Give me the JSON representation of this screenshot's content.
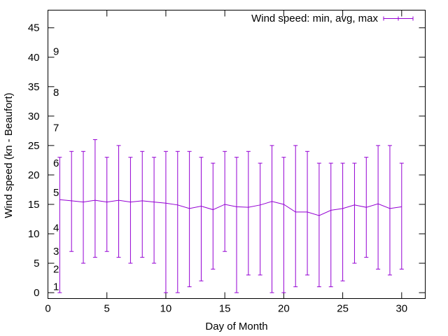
{
  "chart_data": {
    "type": "line",
    "title": "",
    "xlabel": "Day of Month",
    "ylabel": "Wind speed (kn - Beaufort)",
    "xlim": [
      0,
      32
    ],
    "ylim": [
      -1,
      48
    ],
    "x_ticks": [
      0,
      5,
      10,
      15,
      20,
      25,
      30
    ],
    "y_ticks": [
      0,
      5,
      10,
      15,
      20,
      25,
      30,
      35,
      40,
      45
    ],
    "grid": false,
    "legend_position": "top-right",
    "series": [
      {
        "name": "Wind speed: min, avg, max",
        "color": "#9400d3",
        "style": "errorbars-with-line",
        "x": [
          1,
          2,
          3,
          4,
          5,
          6,
          7,
          8,
          9,
          10,
          11,
          12,
          13,
          14,
          15,
          16,
          17,
          18,
          19,
          20,
          21,
          22,
          23,
          24,
          25,
          26,
          27,
          28,
          29,
          30
        ],
        "min": [
          0,
          7,
          5,
          6,
          7,
          6,
          5,
          6,
          5,
          0,
          0,
          1,
          2,
          4,
          7,
          0,
          3,
          3,
          0,
          0,
          1,
          3,
          1,
          1,
          2,
          5,
          6,
          4,
          3,
          4
        ],
        "avg": [
          15.8,
          15.6,
          15.4,
          15.7,
          15.4,
          15.7,
          15.4,
          15.6,
          15.4,
          15.2,
          14.9,
          14.3,
          14.7,
          14.1,
          15.0,
          14.6,
          14.5,
          14.9,
          15.5,
          15.0,
          13.7,
          13.7,
          13.1,
          14.0,
          14.3,
          14.9,
          14.5,
          15.1,
          14.3,
          14.6
        ],
        "max": [
          23,
          24,
          24,
          26,
          23,
          25,
          23,
          24,
          23,
          24,
          24,
          24,
          23,
          22,
          24,
          23,
          24,
          22,
          25,
          23,
          25,
          24,
          22,
          22,
          22,
          22,
          23,
          25,
          25,
          22
        ]
      }
    ],
    "annotations": [
      {
        "text": "1",
        "y": 1
      },
      {
        "text": "2",
        "y": 4
      },
      {
        "text": "3",
        "y": 7
      },
      {
        "text": "4",
        "y": 11
      },
      {
        "text": "5",
        "y": 17
      },
      {
        "text": "6",
        "y": 22
      },
      {
        "text": "7",
        "y": 28
      },
      {
        "text": "8",
        "y": 34
      },
      {
        "text": "9",
        "y": 41
      }
    ]
  }
}
